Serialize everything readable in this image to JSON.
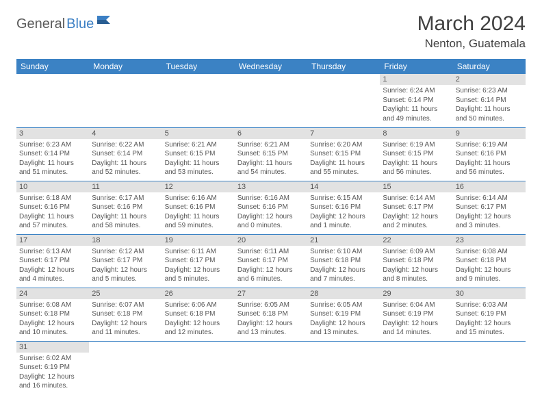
{
  "brand": {
    "part1": "General",
    "part2": "Blue"
  },
  "title": "March 2024",
  "location": "Nenton, Guatemala",
  "colors": {
    "header_bg": "#3b82c4",
    "header_fg": "#ffffff",
    "daynum_bg": "#e2e2e2",
    "text": "#555555",
    "rule": "#3b82c4"
  },
  "fonts": {
    "title_pt": 30,
    "location_pt": 17,
    "th_pt": 12,
    "daynum_pt": 11,
    "body_pt": 10
  },
  "weekdays": [
    "Sunday",
    "Monday",
    "Tuesday",
    "Wednesday",
    "Thursday",
    "Friday",
    "Saturday"
  ],
  "weeks": [
    [
      null,
      null,
      null,
      null,
      null,
      {
        "n": "1",
        "sr": "Sunrise: 6:24 AM",
        "ss": "Sunset: 6:14 PM",
        "d1": "Daylight: 11 hours",
        "d2": "and 49 minutes."
      },
      {
        "n": "2",
        "sr": "Sunrise: 6:23 AM",
        "ss": "Sunset: 6:14 PM",
        "d1": "Daylight: 11 hours",
        "d2": "and 50 minutes."
      }
    ],
    [
      {
        "n": "3",
        "sr": "Sunrise: 6:23 AM",
        "ss": "Sunset: 6:14 PM",
        "d1": "Daylight: 11 hours",
        "d2": "and 51 minutes."
      },
      {
        "n": "4",
        "sr": "Sunrise: 6:22 AM",
        "ss": "Sunset: 6:14 PM",
        "d1": "Daylight: 11 hours",
        "d2": "and 52 minutes."
      },
      {
        "n": "5",
        "sr": "Sunrise: 6:21 AM",
        "ss": "Sunset: 6:15 PM",
        "d1": "Daylight: 11 hours",
        "d2": "and 53 minutes."
      },
      {
        "n": "6",
        "sr": "Sunrise: 6:21 AM",
        "ss": "Sunset: 6:15 PM",
        "d1": "Daylight: 11 hours",
        "d2": "and 54 minutes."
      },
      {
        "n": "7",
        "sr": "Sunrise: 6:20 AM",
        "ss": "Sunset: 6:15 PM",
        "d1": "Daylight: 11 hours",
        "d2": "and 55 minutes."
      },
      {
        "n": "8",
        "sr": "Sunrise: 6:19 AM",
        "ss": "Sunset: 6:15 PM",
        "d1": "Daylight: 11 hours",
        "d2": "and 56 minutes."
      },
      {
        "n": "9",
        "sr": "Sunrise: 6:19 AM",
        "ss": "Sunset: 6:16 PM",
        "d1": "Daylight: 11 hours",
        "d2": "and 56 minutes."
      }
    ],
    [
      {
        "n": "10",
        "sr": "Sunrise: 6:18 AM",
        "ss": "Sunset: 6:16 PM",
        "d1": "Daylight: 11 hours",
        "d2": "and 57 minutes."
      },
      {
        "n": "11",
        "sr": "Sunrise: 6:17 AM",
        "ss": "Sunset: 6:16 PM",
        "d1": "Daylight: 11 hours",
        "d2": "and 58 minutes."
      },
      {
        "n": "12",
        "sr": "Sunrise: 6:16 AM",
        "ss": "Sunset: 6:16 PM",
        "d1": "Daylight: 11 hours",
        "d2": "and 59 minutes."
      },
      {
        "n": "13",
        "sr": "Sunrise: 6:16 AM",
        "ss": "Sunset: 6:16 PM",
        "d1": "Daylight: 12 hours",
        "d2": "and 0 minutes."
      },
      {
        "n": "14",
        "sr": "Sunrise: 6:15 AM",
        "ss": "Sunset: 6:16 PM",
        "d1": "Daylight: 12 hours",
        "d2": "and 1 minute."
      },
      {
        "n": "15",
        "sr": "Sunrise: 6:14 AM",
        "ss": "Sunset: 6:17 PM",
        "d1": "Daylight: 12 hours",
        "d2": "and 2 minutes."
      },
      {
        "n": "16",
        "sr": "Sunrise: 6:14 AM",
        "ss": "Sunset: 6:17 PM",
        "d1": "Daylight: 12 hours",
        "d2": "and 3 minutes."
      }
    ],
    [
      {
        "n": "17",
        "sr": "Sunrise: 6:13 AM",
        "ss": "Sunset: 6:17 PM",
        "d1": "Daylight: 12 hours",
        "d2": "and 4 minutes."
      },
      {
        "n": "18",
        "sr": "Sunrise: 6:12 AM",
        "ss": "Sunset: 6:17 PM",
        "d1": "Daylight: 12 hours",
        "d2": "and 5 minutes."
      },
      {
        "n": "19",
        "sr": "Sunrise: 6:11 AM",
        "ss": "Sunset: 6:17 PM",
        "d1": "Daylight: 12 hours",
        "d2": "and 5 minutes."
      },
      {
        "n": "20",
        "sr": "Sunrise: 6:11 AM",
        "ss": "Sunset: 6:17 PM",
        "d1": "Daylight: 12 hours",
        "d2": "and 6 minutes."
      },
      {
        "n": "21",
        "sr": "Sunrise: 6:10 AM",
        "ss": "Sunset: 6:18 PM",
        "d1": "Daylight: 12 hours",
        "d2": "and 7 minutes."
      },
      {
        "n": "22",
        "sr": "Sunrise: 6:09 AM",
        "ss": "Sunset: 6:18 PM",
        "d1": "Daylight: 12 hours",
        "d2": "and 8 minutes."
      },
      {
        "n": "23",
        "sr": "Sunrise: 6:08 AM",
        "ss": "Sunset: 6:18 PM",
        "d1": "Daylight: 12 hours",
        "d2": "and 9 minutes."
      }
    ],
    [
      {
        "n": "24",
        "sr": "Sunrise: 6:08 AM",
        "ss": "Sunset: 6:18 PM",
        "d1": "Daylight: 12 hours",
        "d2": "and 10 minutes."
      },
      {
        "n": "25",
        "sr": "Sunrise: 6:07 AM",
        "ss": "Sunset: 6:18 PM",
        "d1": "Daylight: 12 hours",
        "d2": "and 11 minutes."
      },
      {
        "n": "26",
        "sr": "Sunrise: 6:06 AM",
        "ss": "Sunset: 6:18 PM",
        "d1": "Daylight: 12 hours",
        "d2": "and 12 minutes."
      },
      {
        "n": "27",
        "sr": "Sunrise: 6:05 AM",
        "ss": "Sunset: 6:18 PM",
        "d1": "Daylight: 12 hours",
        "d2": "and 13 minutes."
      },
      {
        "n": "28",
        "sr": "Sunrise: 6:05 AM",
        "ss": "Sunset: 6:19 PM",
        "d1": "Daylight: 12 hours",
        "d2": "and 13 minutes."
      },
      {
        "n": "29",
        "sr": "Sunrise: 6:04 AM",
        "ss": "Sunset: 6:19 PM",
        "d1": "Daylight: 12 hours",
        "d2": "and 14 minutes."
      },
      {
        "n": "30",
        "sr": "Sunrise: 6:03 AM",
        "ss": "Sunset: 6:19 PM",
        "d1": "Daylight: 12 hours",
        "d2": "and 15 minutes."
      }
    ],
    [
      {
        "n": "31",
        "sr": "Sunrise: 6:02 AM",
        "ss": "Sunset: 6:19 PM",
        "d1": "Daylight: 12 hours",
        "d2": "and 16 minutes."
      },
      null,
      null,
      null,
      null,
      null,
      null
    ]
  ]
}
